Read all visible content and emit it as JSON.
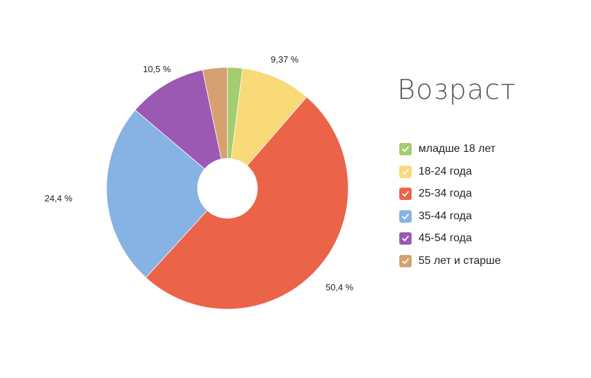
{
  "chart_data": {
    "type": "pie",
    "title": "Возраст",
    "categories": [
      "младше 18 лет",
      "18-24 года",
      "25-34 года",
      "35-44 года",
      "45-54 года",
      "55 лет и старше"
    ],
    "values": [
      2.0,
      9.37,
      50.4,
      24.4,
      10.5,
      3.3
    ],
    "data_labels": [
      "",
      "9,37 %",
      "50,4 %",
      "24,4 %",
      "10,5 %",
      ""
    ],
    "colors": [
      "#a3cd6f",
      "#f8da79",
      "#eb644a",
      "#86b3e3",
      "#9b59b4",
      "#d7a070"
    ],
    "legend_placement": "right",
    "donut": true
  }
}
